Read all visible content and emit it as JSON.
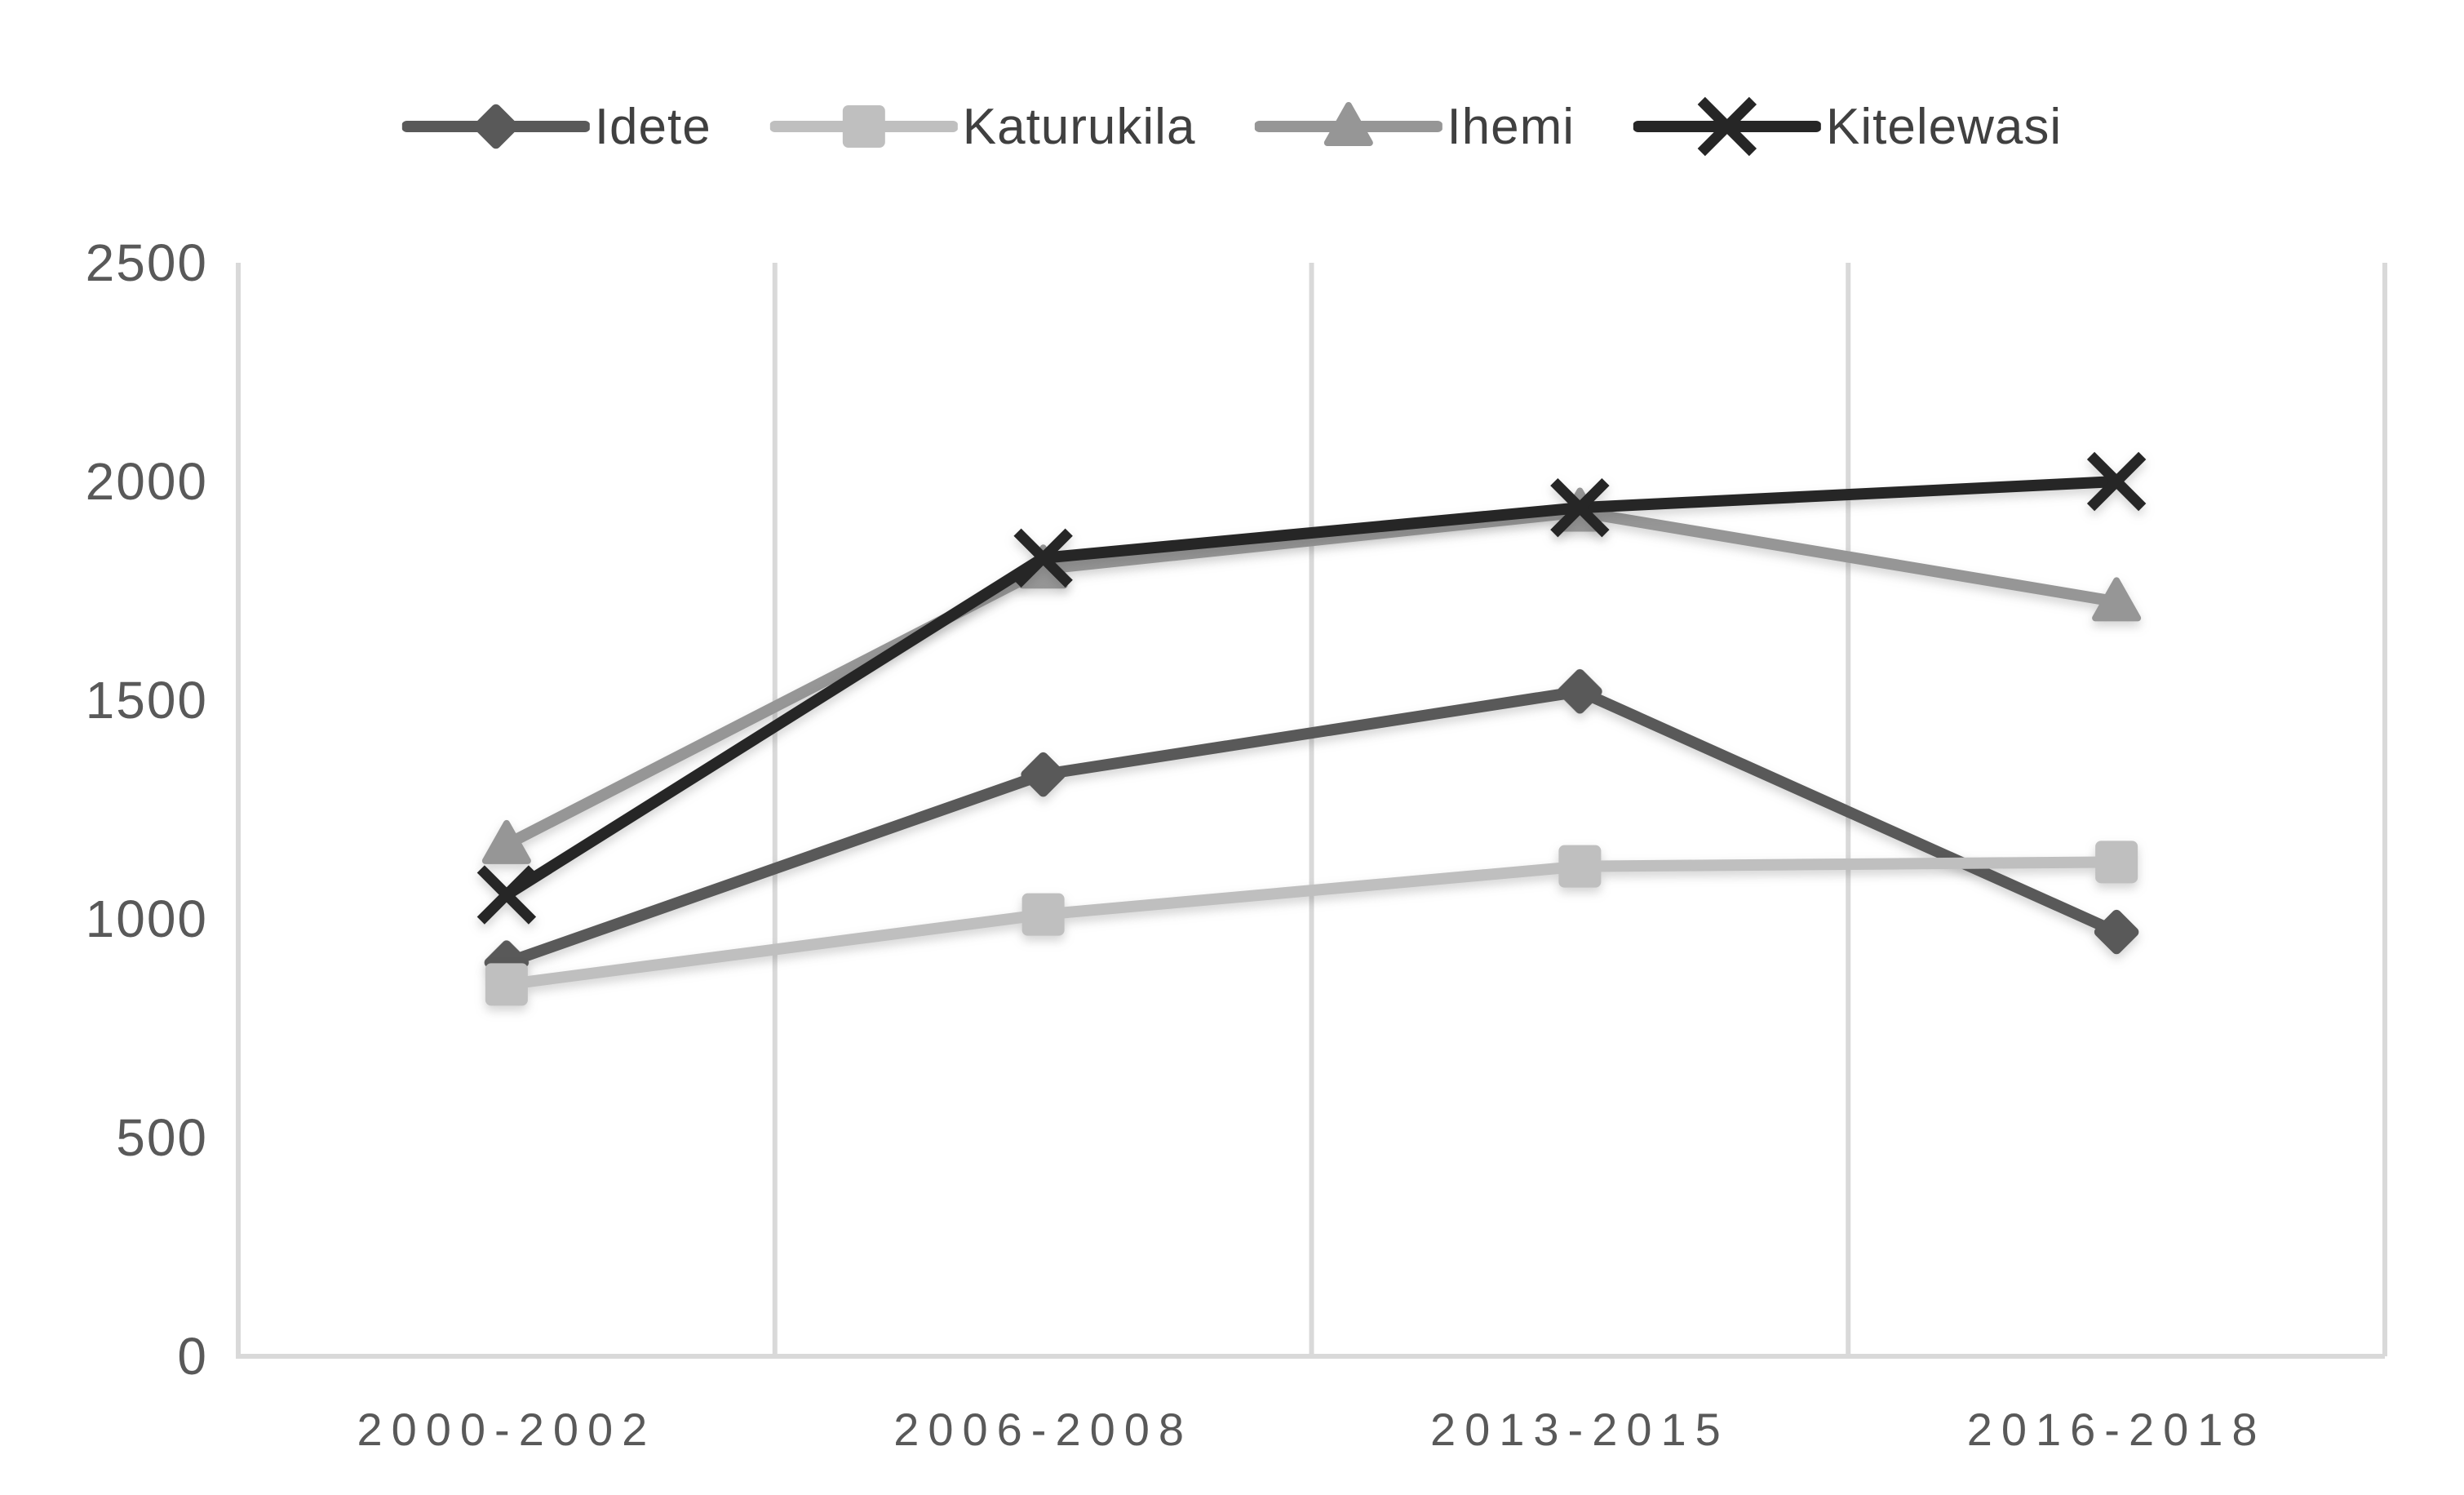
{
  "chart_data": {
    "type": "line",
    "categories": [
      "2000-2002",
      "2006-2008",
      "2013-2015",
      "2016-2018"
    ],
    "series": [
      {
        "name": "Idete",
        "marker": "diamond",
        "color": "#595959",
        "values": [
          900,
          1330,
          1520,
          970
        ]
      },
      {
        "name": "Katurukila",
        "marker": "square",
        "color": "#bfbfbf",
        "values": [
          850,
          1010,
          1120,
          1130
        ]
      },
      {
        "name": "Ihemi",
        "marker": "triangle",
        "color": "#969696",
        "values": [
          1170,
          1800,
          1930,
          1725
        ]
      },
      {
        "name": "Kitelewasi",
        "marker": "x",
        "color": "#262626",
        "values": [
          1055,
          1825,
          1940,
          2000
        ]
      }
    ],
    "title": "",
    "xlabel": "",
    "ylabel": "",
    "ylim": [
      0,
      2500
    ],
    "yticks": [
      0,
      500,
      1000,
      1500,
      2000,
      2500
    ],
    "grid": "vertical-only",
    "legend_position": "top-center",
    "gridline_color": "#d9d9d9",
    "axis_line_color": "#d9d9d9",
    "tick_label_color": "#595959",
    "legend_label_color": "#404040",
    "background_color": "#ffffff"
  }
}
